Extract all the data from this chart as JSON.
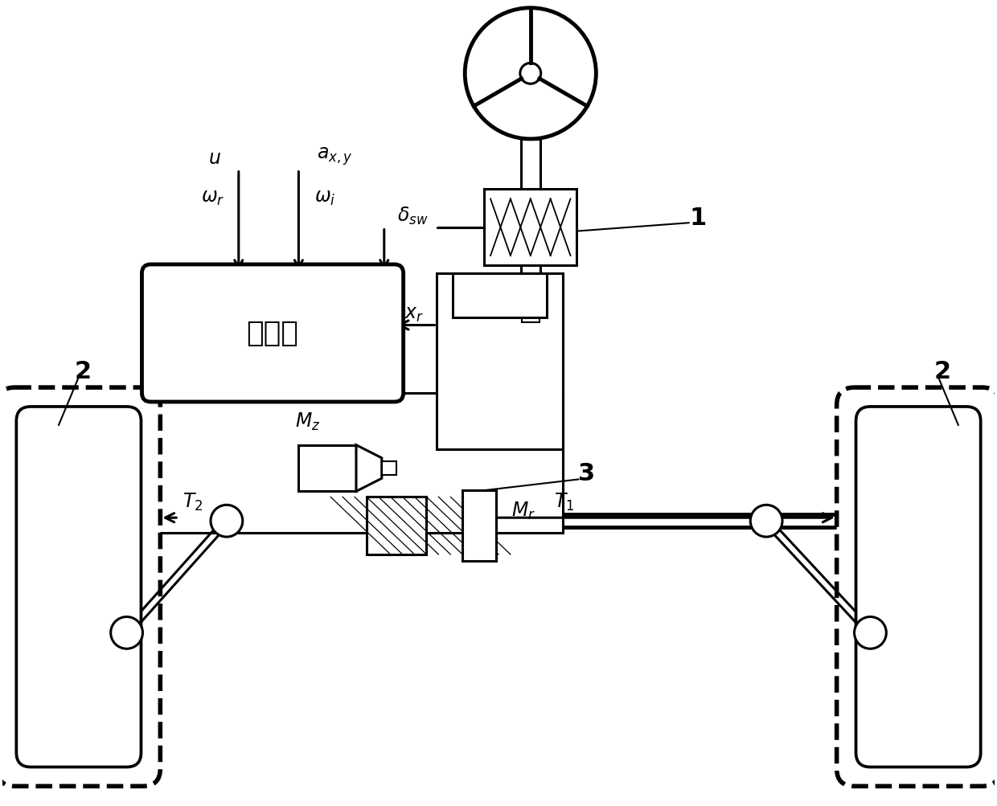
{
  "bg_color": "#ffffff",
  "controller_label": "控制器",
  "fig_width": 12.4,
  "fig_height": 10.04,
  "label_1": "1",
  "label_2": "2",
  "label_3": "3"
}
